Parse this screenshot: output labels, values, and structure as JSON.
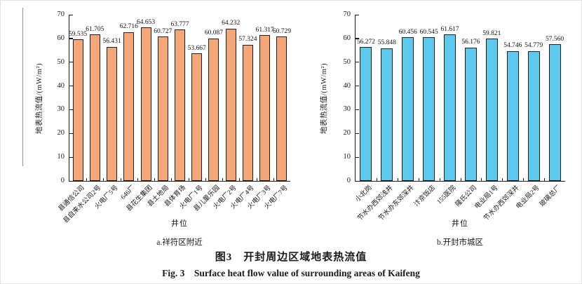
{
  "figure": {
    "caption_zh": "图3　开封周边区域地表热流值",
    "caption_en": "Fig. 3　Surface heat flow value of surrounding areas of Kaifeng"
  },
  "chart_data": [
    {
      "type": "bar",
      "title": "a.祥符区附近",
      "xlabel": "井位",
      "ylabel": "地表热流值/(mW/m²)",
      "ylim": [
        0,
        70
      ],
      "ytick_step": 10,
      "grid": false,
      "legend": "none",
      "bar_color": "#F4A87A",
      "bar_border_color": "#1f1f1f",
      "categories": [
        "县通信公司",
        "县自来水公司2号",
        "火电厂5号",
        "646厂",
        "县花生集团",
        "县土地局",
        "县体育场",
        "火电厂1号",
        "县儿童乐园",
        "火电厂2号",
        "火电厂4号",
        "火电厂3号",
        "火电厂7号"
      ],
      "values": [
        59.535,
        61.705,
        56.431,
        62.716,
        64.653,
        60.727,
        63.777,
        53.667,
        60.087,
        64.232,
        57.324,
        61.317,
        60.729
      ]
    },
    {
      "type": "bar",
      "title": "b.开封市城区",
      "xlabel": "井位",
      "ylabel": "地表热流值/(mW/m²)",
      "ylim": [
        0,
        70
      ],
      "ytick_step": 10,
      "grid": false,
      "legend": "none",
      "bar_color": "#5EC9EE",
      "bar_border_color": "#1f1f1f",
      "categories": [
        "小北岗",
        "节水办西郊浅井",
        "节水办东郊深井",
        "汴京饭店",
        "155医院",
        "隆氏公司",
        "电业局1号",
        "节水办西郊深井",
        "电业局2号",
        "玻璃总厂"
      ],
      "values": [
        56.272,
        55.848,
        60.456,
        60.545,
        61.617,
        56.176,
        59.821,
        54.746,
        54.779,
        57.56
      ]
    }
  ]
}
